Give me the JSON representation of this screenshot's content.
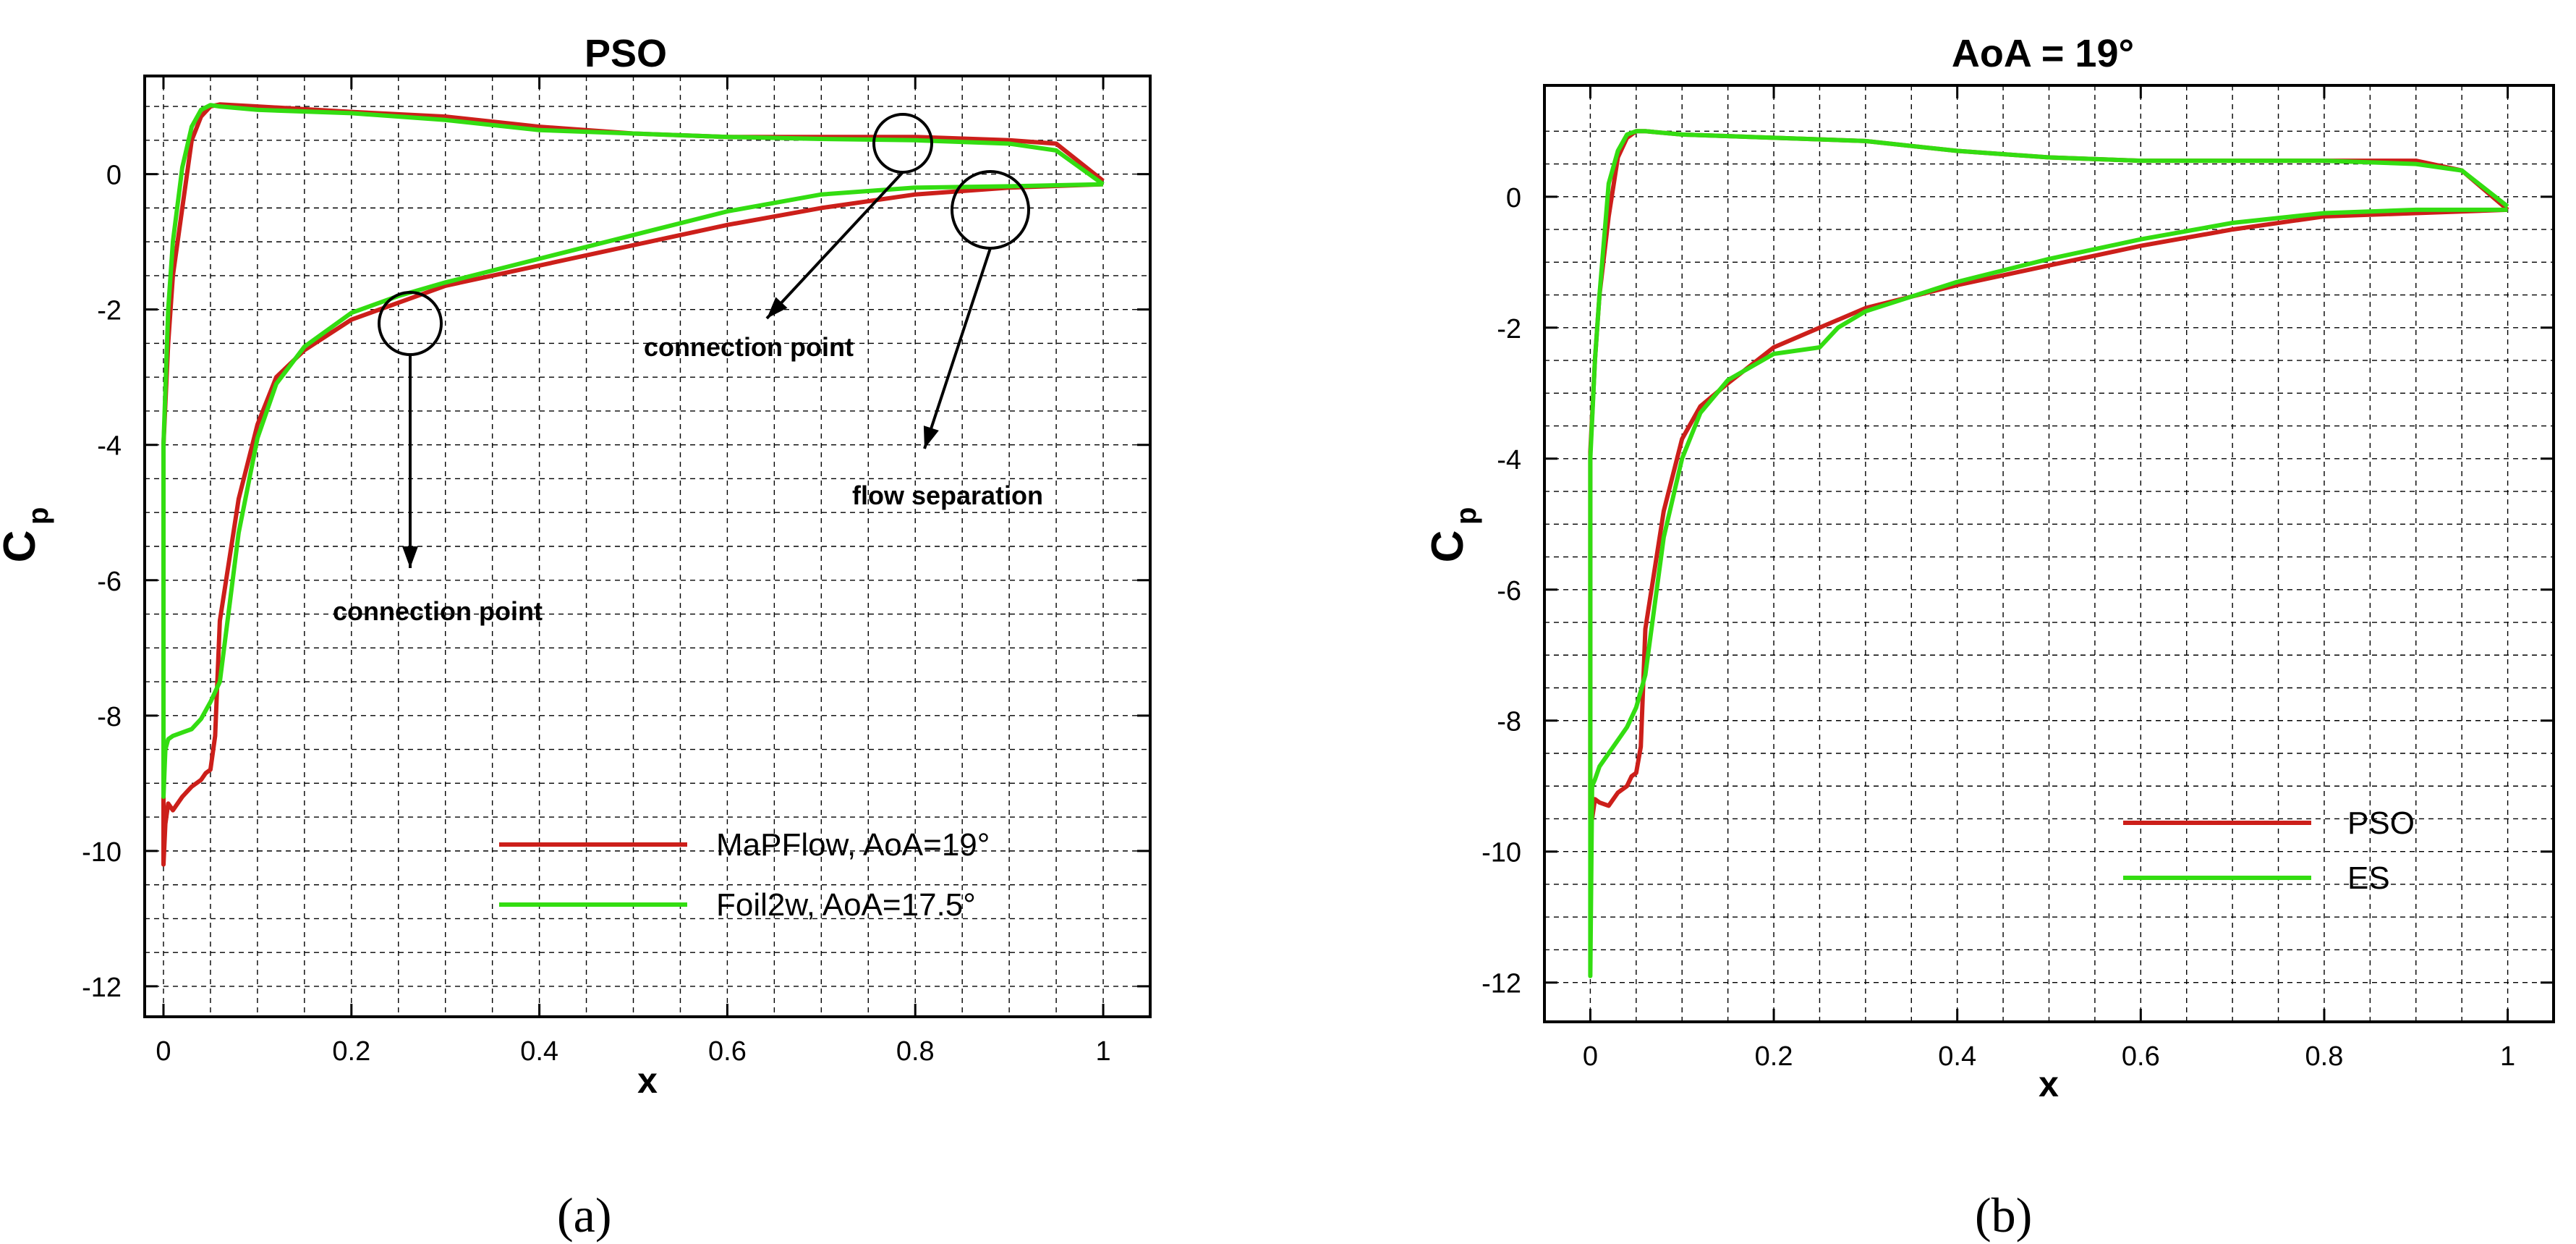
{
  "chart_data": [
    {
      "type": "line",
      "title": "PSO",
      "xlabel": "x",
      "ylabel": "C",
      "ylabel_subscript": "p",
      "xlim": [
        -0.02,
        1.05
      ],
      "ylim": [
        -12.45,
        1.45
      ],
      "x_ticks": [
        "0",
        "0.2",
        "0.4",
        "0.6",
        "0.8",
        "1"
      ],
      "y_ticks": [
        "0",
        "-2",
        "-4",
        "-6",
        "-8",
        "-10",
        "-12"
      ],
      "grid": true,
      "legend_position": "bottom-right",
      "series": [
        {
          "name": "MaPFlow, AoA=19°",
          "color": "#cc1f1a",
          "x": [
            1.0,
            0.95,
            0.9,
            0.8,
            0.7,
            0.6,
            0.5,
            0.4,
            0.3,
            0.2,
            0.1,
            0.06,
            0.05,
            0.04,
            0.03,
            0.02,
            0.01,
            0.005,
            0.0,
            0.0,
            0.002,
            0.005,
            0.01,
            0.02,
            0.03,
            0.04,
            0.045,
            0.05,
            0.055,
            0.06,
            0.08,
            0.1,
            0.12,
            0.15,
            0.2,
            0.25,
            0.3,
            0.4,
            0.5,
            0.6,
            0.7,
            0.8,
            0.9,
            1.0
          ],
          "y": [
            -0.1,
            0.45,
            0.5,
            0.55,
            0.55,
            0.55,
            0.6,
            0.7,
            0.85,
            0.92,
            1.0,
            1.03,
            1.0,
            0.85,
            0.5,
            -0.5,
            -1.5,
            -2.5,
            -4.0,
            -10.2,
            -9.6,
            -9.3,
            -9.4,
            -9.2,
            -9.05,
            -8.95,
            -8.85,
            -8.8,
            -8.3,
            -6.6,
            -4.8,
            -3.7,
            -3.0,
            -2.6,
            -2.15,
            -1.9,
            -1.65,
            -1.35,
            -1.05,
            -0.75,
            -0.5,
            -0.3,
            -0.2,
            -0.15
          ]
        },
        {
          "name": "Foil2w, AoA=17.5°",
          "color": "#33dd11",
          "x": [
            1.0,
            0.95,
            0.9,
            0.8,
            0.7,
            0.6,
            0.5,
            0.4,
            0.3,
            0.2,
            0.1,
            0.06,
            0.05,
            0.04,
            0.03,
            0.02,
            0.01,
            0.005,
            0.0,
            0.0,
            0.002,
            0.005,
            0.01,
            0.02,
            0.03,
            0.04,
            0.05,
            0.06,
            0.08,
            0.1,
            0.12,
            0.15,
            0.2,
            0.25,
            0.3,
            0.4,
            0.5,
            0.6,
            0.7,
            0.8,
            0.9,
            1.0
          ],
          "y": [
            -0.15,
            0.35,
            0.45,
            0.5,
            0.52,
            0.55,
            0.6,
            0.65,
            0.8,
            0.9,
            0.95,
            1.0,
            1.02,
            0.95,
            0.7,
            0.1,
            -1.0,
            -2.0,
            -4.0,
            -9.2,
            -8.5,
            -8.35,
            -8.3,
            -8.25,
            -8.2,
            -8.05,
            -7.8,
            -7.5,
            -5.3,
            -3.9,
            -3.1,
            -2.55,
            -2.05,
            -1.8,
            -1.6,
            -1.25,
            -0.9,
            -0.55,
            -0.3,
            -0.2,
            -0.18,
            -0.15
          ]
        }
      ],
      "annotations": [
        "connection point",
        "flow separation",
        "connection point"
      ]
    },
    {
      "type": "line",
      "title": "AoA = 19°",
      "xlabel": "x",
      "ylabel": "C",
      "ylabel_subscript": "p",
      "xlim": [
        -0.05,
        1.05
      ],
      "ylim": [
        -12.6,
        1.7
      ],
      "x_ticks": [
        "0",
        "0.2",
        "0.4",
        "0.6",
        "0.8",
        "1"
      ],
      "y_ticks": [
        "0",
        "-2",
        "-4",
        "-6",
        "-8",
        "-10",
        "-12"
      ],
      "grid": true,
      "legend_position": "bottom-right",
      "series": [
        {
          "name": "PSO",
          "color": "#cc1f1a",
          "x": [
            1.0,
            0.95,
            0.9,
            0.8,
            0.7,
            0.6,
            0.5,
            0.4,
            0.3,
            0.2,
            0.1,
            0.06,
            0.05,
            0.04,
            0.03,
            0.02,
            0.01,
            0.005,
            0.0,
            0.0,
            0.002,
            0.005,
            0.01,
            0.02,
            0.03,
            0.04,
            0.045,
            0.05,
            0.055,
            0.06,
            0.08,
            0.1,
            0.12,
            0.15,
            0.2,
            0.25,
            0.3,
            0.4,
            0.5,
            0.6,
            0.7,
            0.8,
            0.9,
            1.0
          ],
          "y": [
            -0.2,
            0.4,
            0.55,
            0.55,
            0.55,
            0.55,
            0.6,
            0.7,
            0.85,
            0.9,
            0.95,
            1.0,
            1.0,
            0.9,
            0.6,
            -0.3,
            -1.5,
            -2.5,
            -3.9,
            -9.5,
            -9.5,
            -9.2,
            -9.25,
            -9.3,
            -9.1,
            -9.0,
            -8.85,
            -8.8,
            -8.4,
            -6.6,
            -4.8,
            -3.7,
            -3.2,
            -2.85,
            -2.3,
            -2.0,
            -1.7,
            -1.35,
            -1.05,
            -0.75,
            -0.5,
            -0.3,
            -0.25,
            -0.2
          ]
        },
        {
          "name": "ES",
          "color": "#33dd11",
          "x": [
            1.0,
            0.95,
            0.9,
            0.8,
            0.7,
            0.6,
            0.5,
            0.4,
            0.3,
            0.2,
            0.1,
            0.06,
            0.05,
            0.04,
            0.03,
            0.02,
            0.01,
            0.005,
            0.0,
            0.0,
            0.002,
            0.005,
            0.01,
            0.02,
            0.03,
            0.04,
            0.05,
            0.06,
            0.08,
            0.1,
            0.12,
            0.15,
            0.2,
            0.25,
            0.27,
            0.3,
            0.4,
            0.5,
            0.6,
            0.7,
            0.8,
            0.9,
            1.0
          ],
          "y": [
            -0.15,
            0.4,
            0.5,
            0.55,
            0.55,
            0.55,
            0.6,
            0.7,
            0.85,
            0.9,
            0.95,
            1.0,
            1.0,
            0.95,
            0.7,
            0.2,
            -1.5,
            -2.5,
            -4.0,
            -11.9,
            -9.0,
            -8.9,
            -8.7,
            -8.5,
            -8.3,
            -8.1,
            -7.8,
            -7.3,
            -5.2,
            -4.0,
            -3.3,
            -2.8,
            -2.4,
            -2.3,
            -2.0,
            -1.75,
            -1.3,
            -0.95,
            -0.65,
            -0.4,
            -0.25,
            -0.2,
            -0.2
          ]
        }
      ]
    }
  ],
  "captions": {
    "a": "(a)",
    "b": "(b)"
  }
}
